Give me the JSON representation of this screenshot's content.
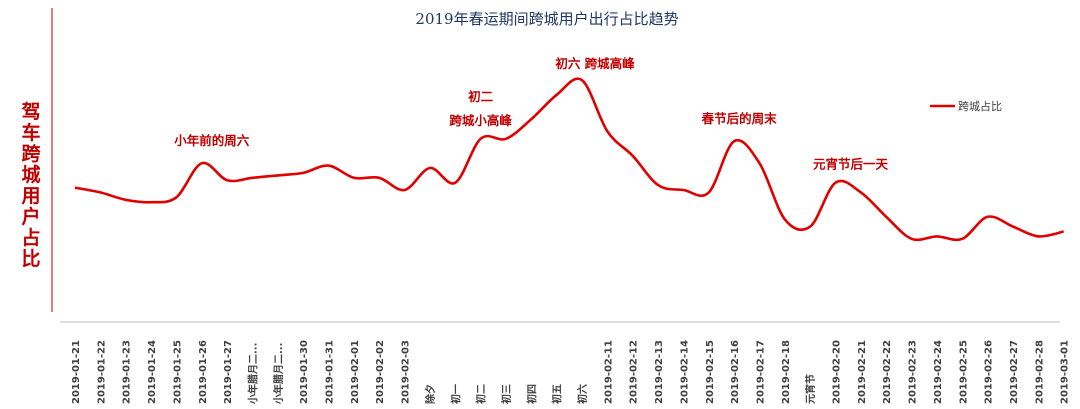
{
  "chart_data": {
    "type": "line",
    "title": "2019年春运期间跨城用户出行占比趋势",
    "ylabel": "驾车跨城用户占比",
    "xlabel": "",
    "y_axis_ticks": false,
    "ylim": [
      0,
      100
    ],
    "grid": false,
    "legend_position": "right",
    "categories": [
      "2019-01-21",
      "2019-01-22",
      "2019-01-23",
      "2019-01-24",
      "2019-01-25",
      "2019-01-26",
      "2019-01-27",
      "小年腊月二...",
      "小年腊月二...",
      "2019-01-30",
      "2019-01-31",
      "2019-02-01",
      "2019-02-02",
      "2019-02-03",
      "除夕",
      "初一",
      "初二",
      "初三",
      "初四",
      "初五",
      "初六",
      "2019-02-11",
      "2019-02-12",
      "2019-02-13",
      "2019-02-14",
      "2019-02-15",
      "2019-02-16",
      "2019-02-17",
      "2019-02-18",
      "元宵节",
      "2019-02-20",
      "2019-02-21",
      "2019-02-22",
      "2019-02-23",
      "2019-02-24",
      "2019-02-25",
      "2019-02-26",
      "2019-02-27",
      "2019-02-28",
      "2019-03-01"
    ],
    "series": [
      {
        "name": "跨城占比",
        "color": "#e00000",
        "values": [
          51,
          49,
          46,
          45,
          47,
          61,
          54,
          55,
          56,
          57,
          60,
          55,
          55,
          50,
          59,
          53,
          71,
          71,
          79,
          89,
          95,
          74,
          64,
          52,
          50,
          49,
          70,
          61,
          38,
          35,
          53,
          49,
          39,
          30,
          31,
          30,
          39,
          35,
          31,
          33
        ]
      }
    ],
    "annotations": [
      {
        "text": "小年前的周六",
        "index": 5
      },
      {
        "text": "初二",
        "index": 16
      },
      {
        "text": "跨城小高峰",
        "index": 16
      },
      {
        "text": "初六 跨城高峰",
        "index": 20
      },
      {
        "text": "春节后的周末",
        "index": 26
      },
      {
        "text": "元宵节后一天",
        "index": 30
      }
    ]
  }
}
